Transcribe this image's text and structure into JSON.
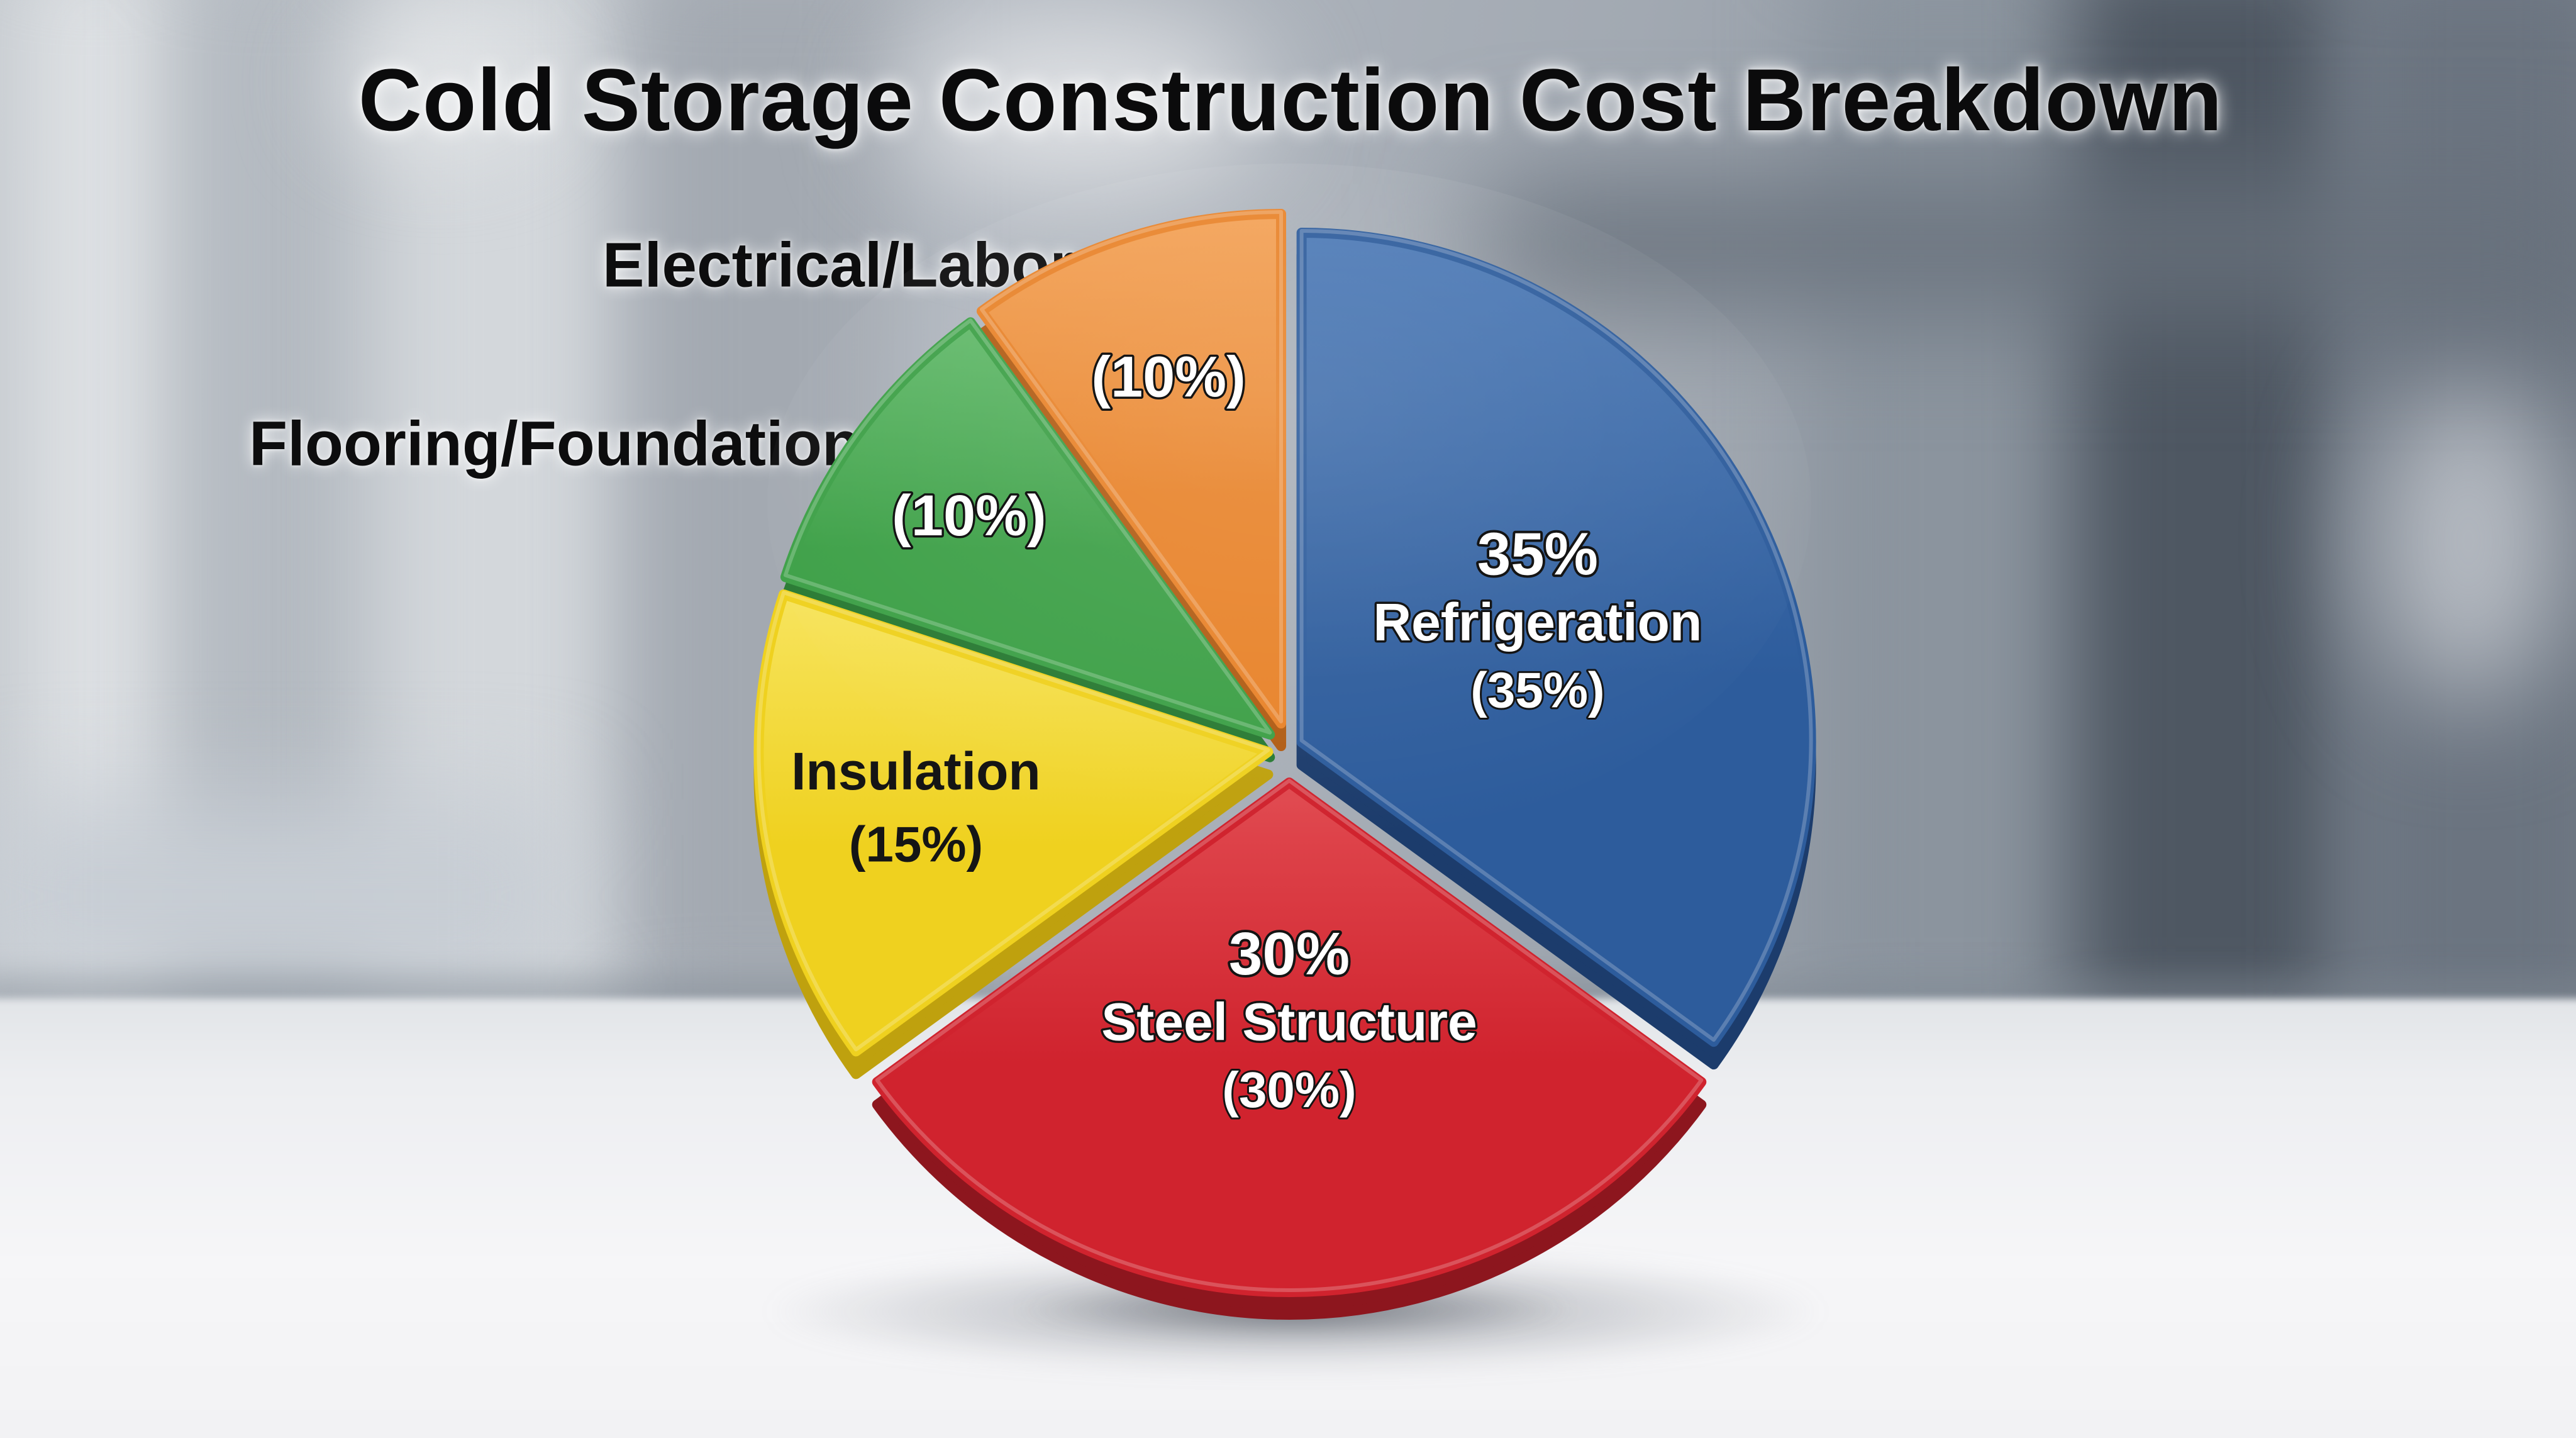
{
  "title": "Cold Storage Construction Cost Breakdown",
  "chart_data": {
    "type": "pie",
    "title": "Cold Storage Construction Cost Breakdown",
    "legend_position": "none",
    "start_angle_deg": 0,
    "direction": "clockwise",
    "units": "percent",
    "slices": [
      {
        "label": "Refrigeration",
        "value": 35,
        "percent_text": "(35%)",
        "lines": [
          "35%",
          "Refrigeration",
          "(35%)"
        ],
        "color": "#2d5c9c",
        "color_light": "#4d7ab6",
        "color_dark": "#1c3c6c",
        "label_color": "#ffffff"
      },
      {
        "label": "Steel Structure",
        "value": 30,
        "percent_text": "(30%)",
        "lines": [
          "30%",
          "Steel Structure",
          "(30%)"
        ],
        "color": "#d0232e",
        "color_light": "#e14a50",
        "color_dark": "#8d161e",
        "label_color": "#ffffff"
      },
      {
        "label": "Insulation",
        "value": 15,
        "percent_text": "(15%)",
        "lines": [
          "Insulation",
          "(15%)"
        ],
        "color": "#efd11f",
        "color_light": "#f7e45e",
        "color_dark": "#bfa10e",
        "label_color": "#151515"
      },
      {
        "label": "Flooring/Foundation",
        "value": 10,
        "percent_text": "(10%)",
        "lines": [
          "(10%)"
        ],
        "color": "#3da047",
        "color_light": "#63ba6b",
        "color_dark": "#297a33",
        "label_color": "#ffffff",
        "outside_label": "Flooring/Foundation"
      },
      {
        "label": "Electrical/Labor",
        "value": 10,
        "percent_text": "(10%)",
        "lines": [
          "(10%)"
        ],
        "color": "#e8832a",
        "color_light": "#f3a257",
        "color_dark": "#b15d15",
        "label_color": "#ffffff",
        "outside_label": "Electrical/Labor"
      }
    ]
  }
}
